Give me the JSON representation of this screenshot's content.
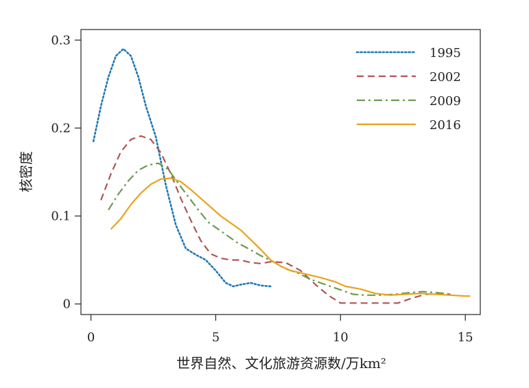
{
  "chart_data": {
    "type": "line",
    "xlabel": "世界自然、文化旅游资源数/万km²",
    "ylabel": "核密度",
    "xlim": [
      -0.4,
      15.6
    ],
    "ylim": [
      -0.012,
      0.312
    ],
    "x_ticks": [
      0,
      5,
      10,
      15
    ],
    "x_tick_labels": [
      "0",
      "5",
      "10",
      "15"
    ],
    "y_ticks": [
      0,
      0.1,
      0.2,
      0.3
    ],
    "y_tick_labels": [
      "0",
      "0.1",
      "0.2",
      "0.3"
    ],
    "legend_position": "top-right",
    "grid": false,
    "series": [
      {
        "name": "1995",
        "color": "#1f77b4",
        "dash": "dotted",
        "points": [
          [
            0.1,
            0.185
          ],
          [
            0.4,
            0.225
          ],
          [
            0.7,
            0.258
          ],
          [
            1.0,
            0.282
          ],
          [
            1.3,
            0.29
          ],
          [
            1.6,
            0.282
          ],
          [
            1.9,
            0.258
          ],
          [
            2.2,
            0.225
          ],
          [
            2.6,
            0.19
          ],
          [
            3.0,
            0.135
          ],
          [
            3.4,
            0.09
          ],
          [
            3.8,
            0.063
          ],
          [
            4.2,
            0.056
          ],
          [
            4.6,
            0.05
          ],
          [
            5.0,
            0.038
          ],
          [
            5.4,
            0.024
          ],
          [
            5.7,
            0.02
          ],
          [
            6.0,
            0.022
          ],
          [
            6.4,
            0.024
          ],
          [
            6.8,
            0.021
          ],
          [
            7.2,
            0.02
          ]
        ]
      },
      {
        "name": "2002",
        "color": "#b05454",
        "dash": "dashed",
        "points": [
          [
            0.4,
            0.118
          ],
          [
            0.8,
            0.148
          ],
          [
            1.2,
            0.173
          ],
          [
            1.6,
            0.187
          ],
          [
            2.0,
            0.191
          ],
          [
            2.4,
            0.187
          ],
          [
            2.8,
            0.172
          ],
          [
            3.2,
            0.148
          ],
          [
            3.6,
            0.12
          ],
          [
            4.0,
            0.095
          ],
          [
            4.4,
            0.072
          ],
          [
            4.8,
            0.057
          ],
          [
            5.2,
            0.052
          ],
          [
            5.6,
            0.05
          ],
          [
            6.0,
            0.05
          ],
          [
            6.4,
            0.047
          ],
          [
            6.8,
            0.046
          ],
          [
            7.2,
            0.048
          ],
          [
            7.8,
            0.047
          ],
          [
            8.4,
            0.038
          ],
          [
            9.0,
            0.022
          ],
          [
            9.5,
            0.01
          ],
          [
            10.0,
            0.001
          ],
          [
            10.6,
            0.001
          ],
          [
            11.2,
            0.001
          ],
          [
            11.8,
            0.001
          ],
          [
            12.3,
            0.001
          ],
          [
            12.8,
            0.006
          ],
          [
            13.4,
            0.011
          ],
          [
            14.0,
            0.012
          ],
          [
            14.4,
            0.011
          ]
        ]
      },
      {
        "name": "2009",
        "color": "#6b9a4f",
        "dash": "dashdot",
        "points": [
          [
            0.7,
            0.107
          ],
          [
            1.1,
            0.125
          ],
          [
            1.5,
            0.14
          ],
          [
            1.9,
            0.152
          ],
          [
            2.3,
            0.158
          ],
          [
            2.7,
            0.16
          ],
          [
            3.1,
            0.153
          ],
          [
            3.5,
            0.137
          ],
          [
            3.9,
            0.122
          ],
          [
            4.3,
            0.107
          ],
          [
            4.7,
            0.093
          ],
          [
            5.1,
            0.085
          ],
          [
            5.5,
            0.077
          ],
          [
            5.9,
            0.069
          ],
          [
            6.3,
            0.063
          ],
          [
            6.8,
            0.055
          ],
          [
            7.3,
            0.048
          ],
          [
            7.8,
            0.04
          ],
          [
            8.3,
            0.035
          ],
          [
            8.8,
            0.028
          ],
          [
            9.4,
            0.022
          ],
          [
            10.0,
            0.016
          ],
          [
            10.5,
            0.011
          ],
          [
            11.0,
            0.01
          ],
          [
            11.6,
            0.01
          ],
          [
            12.2,
            0.011
          ],
          [
            12.8,
            0.013
          ],
          [
            13.3,
            0.014
          ],
          [
            13.8,
            0.013
          ],
          [
            14.2,
            0.012
          ]
        ]
      },
      {
        "name": "2016",
        "color": "#e8a21c",
        "dash": "solid",
        "points": [
          [
            0.8,
            0.085
          ],
          [
            1.2,
            0.097
          ],
          [
            1.6,
            0.113
          ],
          [
            2.0,
            0.126
          ],
          [
            2.4,
            0.136
          ],
          [
            2.8,
            0.142
          ],
          [
            3.2,
            0.143
          ],
          [
            3.6,
            0.139
          ],
          [
            4.0,
            0.13
          ],
          [
            4.4,
            0.12
          ],
          [
            4.8,
            0.11
          ],
          [
            5.2,
            0.1
          ],
          [
            5.6,
            0.092
          ],
          [
            6.0,
            0.084
          ],
          [
            6.4,
            0.073
          ],
          [
            6.8,
            0.062
          ],
          [
            7.2,
            0.05
          ],
          [
            7.6,
            0.043
          ],
          [
            8.0,
            0.038
          ],
          [
            8.6,
            0.034
          ],
          [
            9.2,
            0.03
          ],
          [
            9.8,
            0.025
          ],
          [
            10.2,
            0.02
          ],
          [
            10.8,
            0.017
          ],
          [
            11.4,
            0.012
          ],
          [
            12.0,
            0.01
          ],
          [
            12.6,
            0.011
          ],
          [
            13.2,
            0.012
          ],
          [
            13.8,
            0.011
          ],
          [
            14.4,
            0.01
          ],
          [
            15.0,
            0.009
          ],
          [
            15.2,
            0.009
          ]
        ]
      }
    ]
  }
}
